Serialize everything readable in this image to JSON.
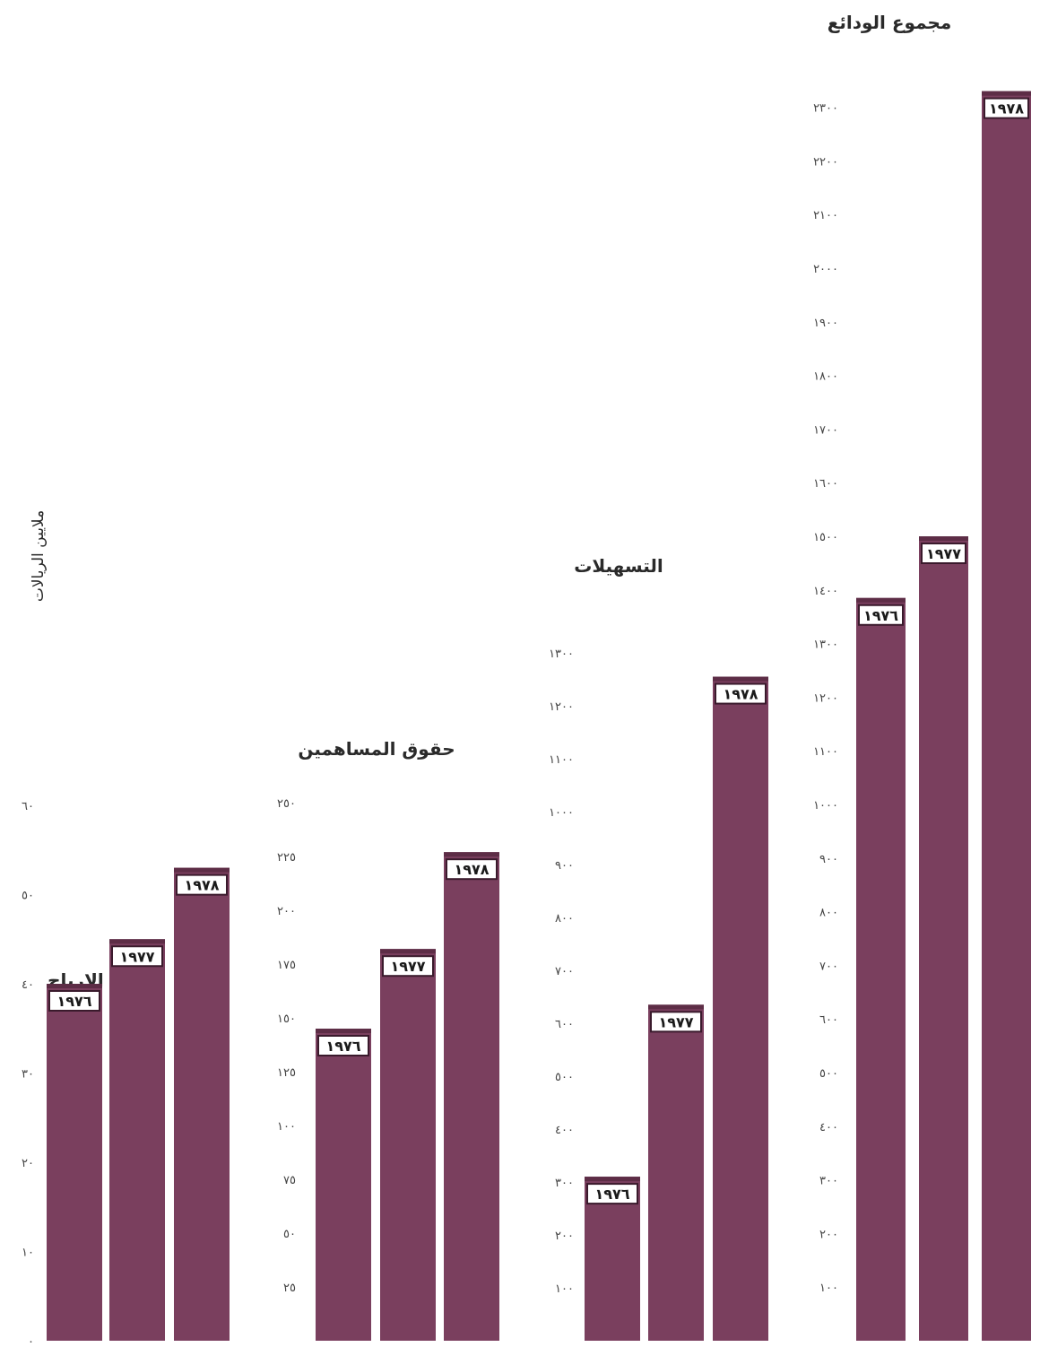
{
  "figure": {
    "ylabel": "ملايين الريالات"
  },
  "chart_data": [
    {
      "type": "bar",
      "title": "صافي الارباح",
      "categories": [
        "١٩٧٦",
        "١٩٧٧",
        "١٩٧٨"
      ],
      "values": [
        40,
        45,
        53
      ],
      "ylim": [
        0,
        60
      ],
      "ticks": [
        {
          "value": 0,
          "label": "٠"
        },
        {
          "value": 10,
          "label": "١٠"
        },
        {
          "value": 20,
          "label": "٢٠"
        },
        {
          "value": 30,
          "label": "٣٠"
        },
        {
          "value": 40,
          "label": "٤٠"
        },
        {
          "value": 50,
          "label": "٥٠"
        },
        {
          "value": 60,
          "label": "٦٠"
        }
      ],
      "grid": false
    },
    {
      "type": "bar",
      "title": "حقوق المساهمين",
      "categories": [
        "١٩٧٦",
        "١٩٧٧",
        "١٩٧٨"
      ],
      "values": [
        145,
        182,
        227
      ],
      "ylim": [
        0,
        250
      ],
      "ticks": [
        {
          "value": 25,
          "label": "٢٥"
        },
        {
          "value": 50,
          "label": "٥٠"
        },
        {
          "value": 75,
          "label": "٧٥"
        },
        {
          "value": 100,
          "label": "١٠٠"
        },
        {
          "value": 125,
          "label": "١٢٥"
        },
        {
          "value": 150,
          "label": "١٥٠"
        },
        {
          "value": 175,
          "label": "١٧٥"
        },
        {
          "value": 200,
          "label": "٢٠٠"
        },
        {
          "value": 225,
          "label": "٢٢٥"
        },
        {
          "value": 250,
          "label": "٢٥٠"
        }
      ],
      "grid": false
    },
    {
      "type": "bar",
      "title": "التسهيلات",
      "categories": [
        "١٩٧٦",
        "١٩٧٧",
        "١٩٧٨"
      ],
      "values": [
        310,
        635,
        1255
      ],
      "ylim": [
        0,
        1300
      ],
      "ticks": [
        {
          "value": 100,
          "label": "١٠٠"
        },
        {
          "value": 200,
          "label": "٢٠٠"
        },
        {
          "value": 300,
          "label": "٣٠٠"
        },
        {
          "value": 400,
          "label": "٤٠٠"
        },
        {
          "value": 500,
          "label": "٥٠٠"
        },
        {
          "value": 600,
          "label": "٦٠٠"
        },
        {
          "value": 700,
          "label": "٧٠٠"
        },
        {
          "value": 800,
          "label": "٨٠٠"
        },
        {
          "value": 900,
          "label": "٩٠٠"
        },
        {
          "value": 1000,
          "label": "١٠٠٠"
        },
        {
          "value": 1100,
          "label": "١١٠٠"
        },
        {
          "value": 1200,
          "label": "١٢٠٠"
        },
        {
          "value": 1300,
          "label": "١٣٠٠"
        }
      ],
      "grid": false
    },
    {
      "type": "bar",
      "title": "مجموع الودائع",
      "categories": [
        "١٩٧٦",
        "١٩٧٧",
        "١٩٧٨"
      ],
      "values": [
        1385,
        1500,
        2330
      ],
      "ylim": [
        0,
        2300
      ],
      "ticks": [
        {
          "value": 100,
          "label": "١٠٠"
        },
        {
          "value": 200,
          "label": "٢٠٠"
        },
        {
          "value": 300,
          "label": "٣٠٠"
        },
        {
          "value": 400,
          "label": "٤٠٠"
        },
        {
          "value": 500,
          "label": "٥٠٠"
        },
        {
          "value": 600,
          "label": "٦٠٠"
        },
        {
          "value": 700,
          "label": "٧٠٠"
        },
        {
          "value": 800,
          "label": "٨٠٠"
        },
        {
          "value": 900,
          "label": "٩٠٠"
        },
        {
          "value": 1000,
          "label": "١٠٠٠"
        },
        {
          "value": 1100,
          "label": "١١٠٠"
        },
        {
          "value": 1200,
          "label": "١٢٠٠"
        },
        {
          "value": 1300,
          "label": "١٣٠٠"
        },
        {
          "value": 1400,
          "label": "١٤٠٠"
        },
        {
          "value": 1500,
          "label": "١٥٠٠"
        },
        {
          "value": 1600,
          "label": "١٦٠٠"
        },
        {
          "value": 1700,
          "label": "١٧٠٠"
        },
        {
          "value": 1800,
          "label": "١٨٠٠"
        },
        {
          "value": 1900,
          "label": "١٩٠٠"
        },
        {
          "value": 2000,
          "label": "٢٠٠٠"
        },
        {
          "value": 2100,
          "label": "٢١٠٠"
        },
        {
          "value": 2200,
          "label": "٢٢٠٠"
        },
        {
          "value": 2300,
          "label": "٢٣٠٠"
        }
      ],
      "grid": false
    }
  ],
  "colors": {
    "bar": "#7a3f5e",
    "bar_cap": "#5d2d46",
    "label_box": "#ffffff",
    "label_border": "#3a1a2c"
  }
}
